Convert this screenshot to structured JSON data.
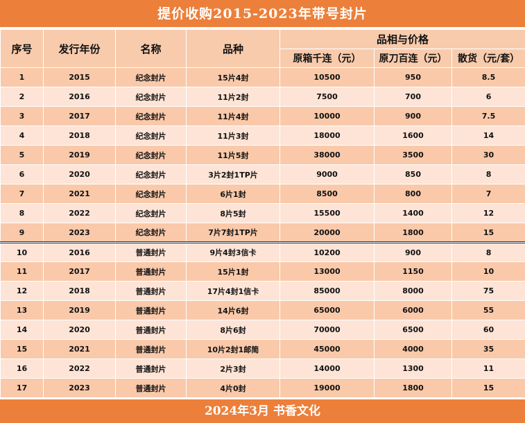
{
  "title": "提价收购2015-2023年带号封片",
  "footer": "2024年3月   书香文化",
  "headers": {
    "seq": "序号",
    "year": "发行年份",
    "name": "名称",
    "variety": "品种",
    "group": "品相与价格",
    "box": "原箱千连（元）",
    "knife": "原刀百连（元）",
    "loose": "散货（元/套）"
  },
  "rows": [
    {
      "seq": "1",
      "year": "2015",
      "name": "纪念封片",
      "variety": "15片4封",
      "box": "10500",
      "knife": "950",
      "loose": "8.5"
    },
    {
      "seq": "2",
      "year": "2016",
      "name": "纪念封片",
      "variety": "11片2封",
      "box": "7500",
      "knife": "700",
      "loose": "6"
    },
    {
      "seq": "3",
      "year": "2017",
      "name": "纪念封片",
      "variety": "11片4封",
      "box": "10000",
      "knife": "900",
      "loose": "7.5"
    },
    {
      "seq": "4",
      "year": "2018",
      "name": "纪念封片",
      "variety": "11片3封",
      "box": "18000",
      "knife": "1600",
      "loose": "14"
    },
    {
      "seq": "5",
      "year": "2019",
      "name": "纪念封片",
      "variety": "11片5封",
      "box": "38000",
      "knife": "3500",
      "loose": "30"
    },
    {
      "seq": "6",
      "year": "2020",
      "name": "纪念封片",
      "variety": "3片2封1TP片",
      "box": "9000",
      "knife": "850",
      "loose": "8"
    },
    {
      "seq": "7",
      "year": "2021",
      "name": "纪念封片",
      "variety": "6片1封",
      "box": "8500",
      "knife": "800",
      "loose": "7"
    },
    {
      "seq": "8",
      "year": "2022",
      "name": "纪念封片",
      "variety": "8片5封",
      "box": "15500",
      "knife": "1400",
      "loose": "12"
    },
    {
      "seq": "9",
      "year": "2023",
      "name": "纪念封片",
      "variety": "7片7封1TP片",
      "box": "20000",
      "knife": "1800",
      "loose": "15"
    },
    {
      "seq": "10",
      "year": "2016",
      "name": "普通封片",
      "variety": "9片4封3信卡",
      "box": "10200",
      "knife": "900",
      "loose": "8"
    },
    {
      "seq": "11",
      "year": "2017",
      "name": "普通封片",
      "variety": "15片1封",
      "box": "13000",
      "knife": "1150",
      "loose": "10"
    },
    {
      "seq": "12",
      "year": "2018",
      "name": "普通封片",
      "variety": "17片4封1信卡",
      "box": "85000",
      "knife": "8000",
      "loose": "75"
    },
    {
      "seq": "13",
      "year": "2019",
      "name": "普通封片",
      "variety": "14片6封",
      "box": "65000",
      "knife": "6000",
      "loose": "55"
    },
    {
      "seq": "14",
      "year": "2020",
      "name": "普通封片",
      "variety": "8片6封",
      "box": "70000",
      "knife": "6500",
      "loose": "60"
    },
    {
      "seq": "15",
      "year": "2021",
      "name": "普通封片",
      "variety": "10片2封1邮简",
      "box": "45000",
      "knife": "4000",
      "loose": "35"
    },
    {
      "seq": "16",
      "year": "2022",
      "name": "普通封片",
      "variety": "2片3封",
      "box": "14000",
      "knife": "1300",
      "loose": "11"
    },
    {
      "seq": "17",
      "year": "2023",
      "name": "普通封片",
      "variety": "4片0封",
      "box": "19000",
      "knife": "1800",
      "loose": "15"
    }
  ],
  "colors": {
    "banner": "#ec7f3a",
    "header": "#f8cbad",
    "row_dark": "#f9c9aa",
    "row_light": "#fde4d6"
  }
}
